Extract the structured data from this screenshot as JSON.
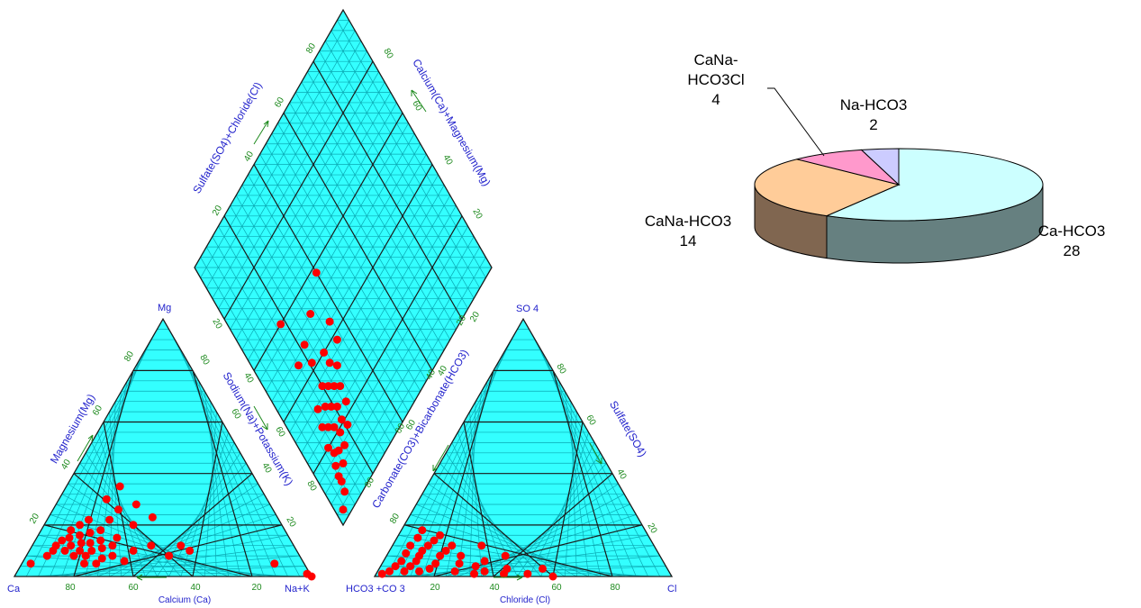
{
  "colors": {
    "grid_fill": "#33ffff",
    "grid_line": "#0ba9b3",
    "major_line": "#1a1a1a",
    "sample": "#ff0000",
    "label": "#2222cc",
    "tick": "#1e8a1e"
  },
  "piper": {
    "cation_corners": {
      "left": "Ca",
      "right": "Na+K",
      "top": "Mg"
    },
    "anion_corners": {
      "left": "HCO3 +CO 3",
      "right": "Cl",
      "top": "SO 4"
    },
    "cation_bottom_label": "Calcium (Ca)",
    "cation_left_label": "Magnesium(Mg)",
    "cation_right_label": "Sodium(Na)+Potassium(K)",
    "anion_bottom_label": "Chloride (Cl)",
    "anion_left_label": "Carbonate(CO3)+Bicarbonate(HCO3)",
    "anion_right_label": "Sulfate(SO4)",
    "diamond_ul_label": "Sulfate(SO4)+Chloride(Cl)",
    "diamond_ur_label": "Calcium(Ca)+Magnesium(Mg)",
    "tick_values": [
      "20",
      "40",
      "60",
      "80"
    ]
  },
  "chart_data": [
    {
      "type": "scatter",
      "title": "",
      "description_of_axes": "ternary cation diagram, percent",
      "axes": [
        "Ca",
        "Mg",
        "Na+K"
      ],
      "points": [
        {
          "Ca": 92,
          "Mg": 5,
          "Na+K": 3
        },
        {
          "Ca": 85,
          "Mg": 8,
          "Na+K": 7
        },
        {
          "Ca": 82,
          "Mg": 10,
          "Na+K": 8
        },
        {
          "Ca": 80,
          "Mg": 12,
          "Na+K": 8
        },
        {
          "Ca": 78,
          "Mg": 10,
          "Na+K": 12
        },
        {
          "Ca": 77,
          "Mg": 14,
          "Na+K": 9
        },
        {
          "Ca": 76,
          "Mg": 8,
          "Na+K": 16
        },
        {
          "Ca": 75,
          "Mg": 12,
          "Na+K": 13
        },
        {
          "Ca": 74,
          "Mg": 15,
          "Na+K": 11
        },
        {
          "Ca": 74,
          "Mg": 5,
          "Na+K": 21
        },
        {
          "Ca": 73,
          "Mg": 10,
          "Na+K": 17
        },
        {
          "Ca": 72,
          "Mg": 18,
          "Na+K": 10
        },
        {
          "Ca": 72,
          "Mg": 8,
          "Na+K": 20
        },
        {
          "Ca": 71,
          "Mg": 13,
          "Na+K": 16
        },
        {
          "Ca": 70,
          "Mg": 5,
          "Na+K": 25
        },
        {
          "Ca": 70,
          "Mg": 16,
          "Na+K": 14
        },
        {
          "Ca": 69,
          "Mg": 10,
          "Na+K": 21
        },
        {
          "Ca": 68,
          "Mg": 20,
          "Na+K": 12
        },
        {
          "Ca": 68,
          "Mg": 13,
          "Na+K": 19
        },
        {
          "Ca": 67,
          "Mg": 7,
          "Na+K": 26
        },
        {
          "Ca": 66,
          "Mg": 17,
          "Na+K": 17
        },
        {
          "Ca": 65,
          "Mg": 11,
          "Na+K": 24
        },
        {
          "Ca": 64,
          "Mg": 22,
          "Na+K": 14
        },
        {
          "Ca": 64,
          "Mg": 14,
          "Na+K": 22
        },
        {
          "Ca": 63,
          "Mg": 8,
          "Na+K": 29
        },
        {
          "Ca": 62,
          "Mg": 18,
          "Na+K": 20
        },
        {
          "Ca": 61,
          "Mg": 12,
          "Na+K": 27
        },
        {
          "Ca": 60,
          "Mg": 6,
          "Na+K": 34
        },
        {
          "Ca": 58,
          "Mg": 15,
          "Na+K": 27
        },
        {
          "Ca": 57,
          "Mg": 22,
          "Na+K": 21
        },
        {
          "Ca": 55,
          "Mg": 10,
          "Na+K": 35
        },
        {
          "Ca": 54,
          "Mg": 30,
          "Na+K": 16
        },
        {
          "Ca": 52,
          "Mg": 26,
          "Na+K": 22
        },
        {
          "Ca": 50,
          "Mg": 20,
          "Na+K": 30
        },
        {
          "Ca": 48,
          "Mg": 12,
          "Na+K": 40
        },
        {
          "Ca": 47,
          "Mg": 35,
          "Na+K": 18
        },
        {
          "Ca": 45,
          "Mg": 28,
          "Na+K": 27
        },
        {
          "Ca": 44,
          "Mg": 8,
          "Na+K": 48
        },
        {
          "Ca": 42,
          "Mg": 23,
          "Na+K": 35
        },
        {
          "Ca": 38,
          "Mg": 12,
          "Na+K": 50
        },
        {
          "Ca": 36,
          "Mg": 10,
          "Na+K": 54
        },
        {
          "Ca": 10,
          "Mg": 5,
          "Na+K": 85
        },
        {
          "Ca": 1,
          "Mg": 1,
          "Na+K": 98
        },
        {
          "Ca": 0,
          "Mg": 0,
          "Na+K": 100
        }
      ]
    },
    {
      "type": "scatter",
      "title": "",
      "description_of_axes": "ternary anion diagram, percent",
      "axes": [
        "HCO3+CO3",
        "SO4",
        "Cl"
      ],
      "points": [
        {
          "HCO3+CO3": 97,
          "SO4": 1,
          "Cl": 2
        },
        {
          "HCO3+CO3": 94,
          "SO4": 2,
          "Cl": 4
        },
        {
          "HCO3+CO3": 91,
          "SO4": 4,
          "Cl": 5
        },
        {
          "HCO3+CO3": 89,
          "SO4": 2,
          "Cl": 9
        },
        {
          "HCO3+CO3": 88,
          "SO4": 6,
          "Cl": 6
        },
        {
          "HCO3+CO3": 86,
          "SO4": 4,
          "Cl": 10
        },
        {
          "HCO3+CO3": 85,
          "SO4": 9,
          "Cl": 6
        },
        {
          "HCO3+CO3": 84,
          "SO4": 2,
          "Cl": 14
        },
        {
          "HCO3+CO3": 83,
          "SO4": 6,
          "Cl": 11
        },
        {
          "HCO3+CO3": 82,
          "SO4": 12,
          "Cl": 6
        },
        {
          "HCO3+CO3": 81,
          "SO4": 8,
          "Cl": 11
        },
        {
          "HCO3+CO3": 80,
          "SO4": 3,
          "Cl": 17
        },
        {
          "HCO3+CO3": 79,
          "SO4": 10,
          "Cl": 11
        },
        {
          "HCO3+CO3": 78,
          "SO4": 15,
          "Cl": 7
        },
        {
          "HCO3+CO3": 77,
          "SO4": 5,
          "Cl": 18
        },
        {
          "HCO3+CO3": 76,
          "SO4": 12,
          "Cl": 12
        },
        {
          "HCO3+CO3": 75,
          "SO4": 18,
          "Cl": 7
        },
        {
          "HCO3+CO3": 74,
          "SO4": 8,
          "Cl": 18
        },
        {
          "HCO3+CO3": 73,
          "SO4": 14,
          "Cl": 13
        },
        {
          "HCO3+CO3": 72,
          "SO4": 2,
          "Cl": 26
        },
        {
          "HCO3+CO3": 71,
          "SO4": 10,
          "Cl": 19
        },
        {
          "HCO3+CO3": 70,
          "SO4": 16,
          "Cl": 14
        },
        {
          "HCO3+CO3": 69,
          "SO4": 5,
          "Cl": 26
        },
        {
          "HCO3+CO3": 68,
          "SO4": 12,
          "Cl": 20
        },
        {
          "HCO3+CO3": 67,
          "SO4": 8,
          "Cl": 25
        },
        {
          "HCO3+CO3": 66,
          "SO4": 1,
          "Cl": 33
        },
        {
          "HCO3+CO3": 64,
          "SO4": 4,
          "Cl": 32
        },
        {
          "HCO3+CO3": 62,
          "SO4": 2,
          "Cl": 36
        },
        {
          "HCO3+CO3": 60,
          "SO4": 6,
          "Cl": 34
        },
        {
          "HCO3+CO3": 58,
          "SO4": 12,
          "Cl": 30
        },
        {
          "HCO3+CO3": 56,
          "SO4": 1,
          "Cl": 43
        },
        {
          "HCO3+CO3": 54,
          "SO4": 3,
          "Cl": 43
        },
        {
          "HCO3+CO3": 52,
          "SO4": 8,
          "Cl": 40
        },
        {
          "HCO3+CO3": 48,
          "SO4": 1,
          "Cl": 51
        },
        {
          "HCO3+CO3": 42,
          "SO4": 3,
          "Cl": 55
        },
        {
          "HCO3+CO3": 40,
          "SO4": 0,
          "Cl": 60
        }
      ]
    },
    {
      "type": "pie",
      "title": "",
      "slices": [
        {
          "label": "Ca-HCO3",
          "value": 28,
          "color": "#ccffff",
          "side_color": "#668080"
        },
        {
          "label": "CaNa-HCO3",
          "value": 14,
          "color": "#ffcc99",
          "side_color": "#806650"
        },
        {
          "label": "CaNa-HCO3Cl",
          "value": 4,
          "color": "#ff99cc",
          "side_color": "#804d66"
        },
        {
          "label": "Na-HCO3",
          "value": 2,
          "color": "#ccccff",
          "side_color": "#666680"
        }
      ],
      "label_lines": {
        "Ca-HCO3": [
          "Ca-HCO3",
          "28"
        ],
        "CaNa-HCO3": [
          "CaNa-HCO3",
          "14"
        ],
        "CaNa-HCO3Cl": [
          "CaNa-",
          "HCO3Cl",
          "4"
        ],
        "Na-HCO3": [
          "Na-HCO3",
          "2"
        ]
      }
    }
  ]
}
